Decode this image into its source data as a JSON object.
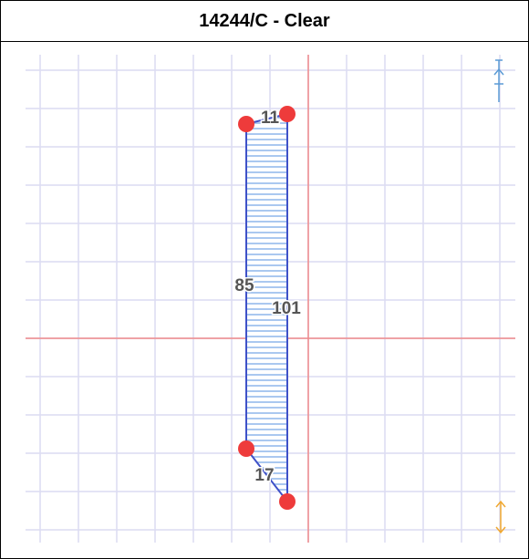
{
  "title": "14244/C - Clear",
  "edges": [
    {
      "label": "11"
    },
    {
      "label": "101"
    },
    {
      "label": "17"
    },
    {
      "label": "85"
    }
  ]
}
